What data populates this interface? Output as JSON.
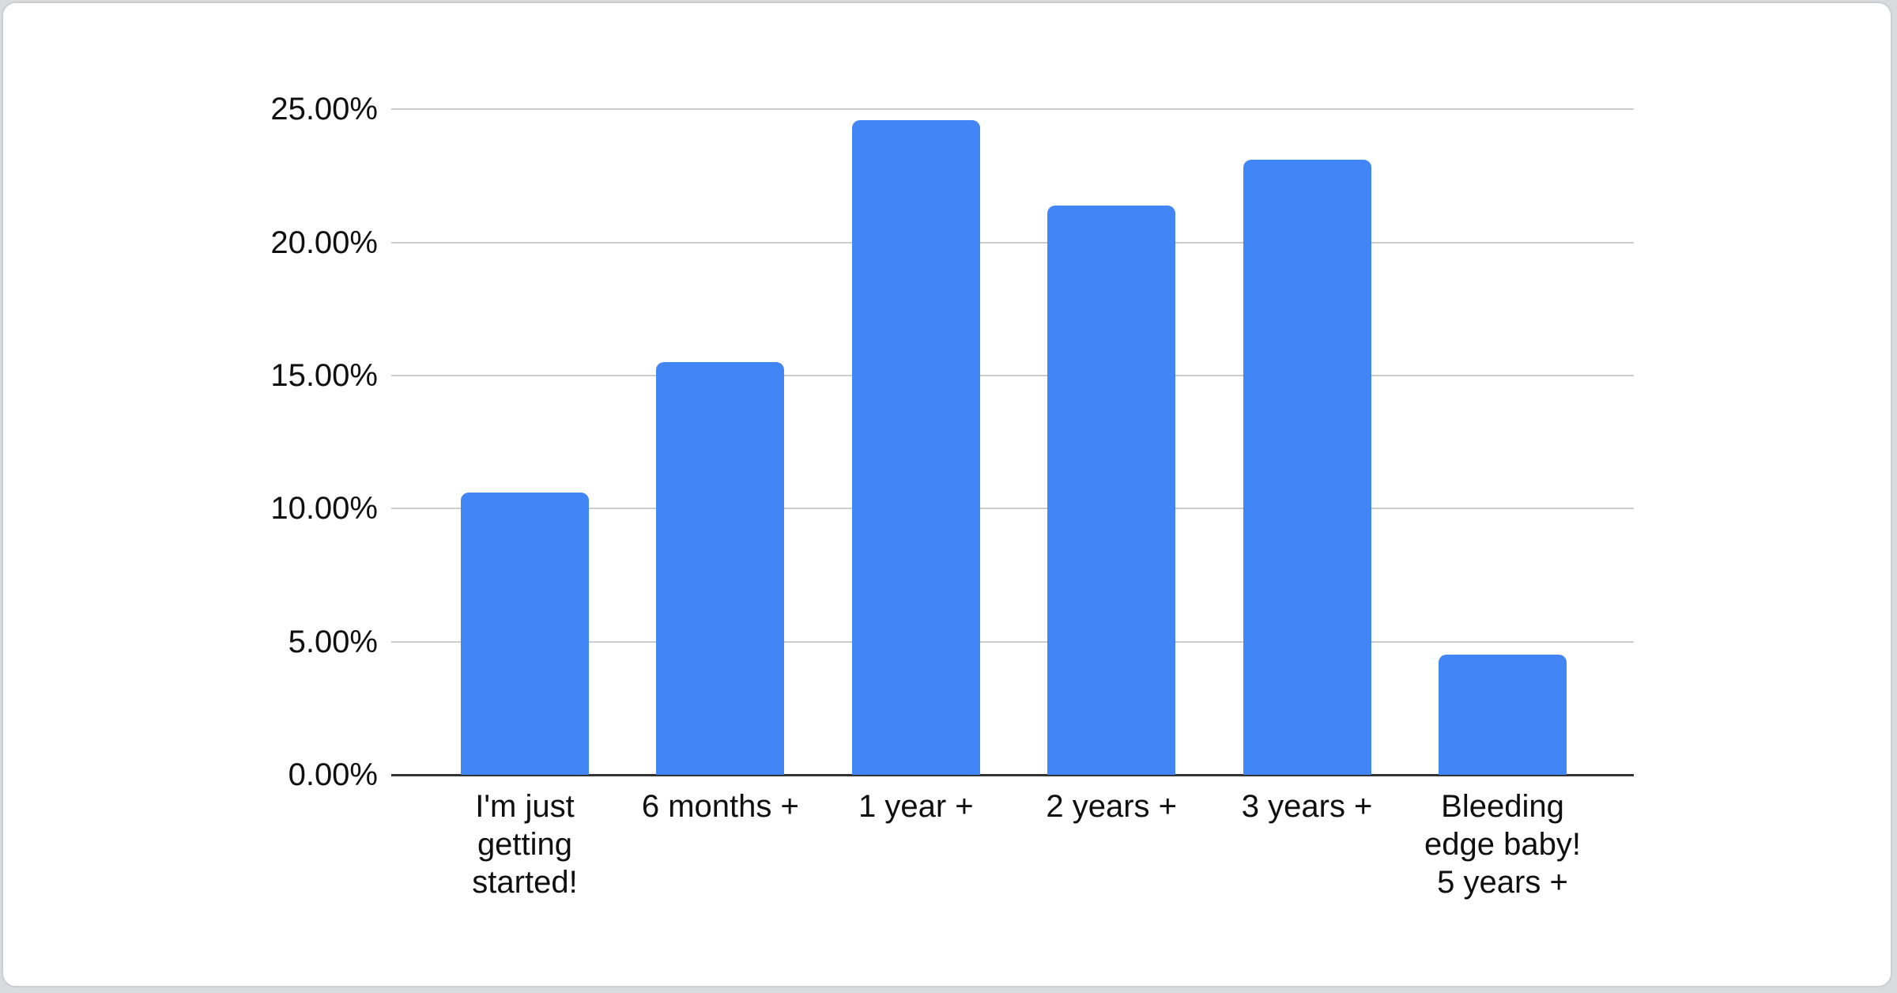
{
  "page": {
    "background_color": "#d8dbde",
    "card_background": "#ffffff",
    "card_border_color": "#c9ced3"
  },
  "chart_data": {
    "type": "bar",
    "title": "",
    "xlabel": "",
    "ylabel": "",
    "categories": [
      "I'm just getting started!",
      "6 months +",
      "1 year +",
      "2 years +",
      "3 years +",
      "Bleeding edge baby! 5 years +"
    ],
    "values": [
      10.6,
      15.5,
      24.6,
      21.4,
      23.1,
      4.5
    ],
    "value_unit": "percent",
    "ylim": [
      0,
      25
    ],
    "ytick_step": 5,
    "ytick_labels": [
      "0.00%",
      "5.00%",
      "10.00%",
      "15.00%",
      "20.00%",
      "25.00%"
    ],
    "grid": true,
    "legend_position": "none",
    "bar_color": "#4285f4",
    "gridline_color": "#cccccc",
    "baseline_color": "#333333",
    "axis_label_color": "#0f0f0f"
  }
}
